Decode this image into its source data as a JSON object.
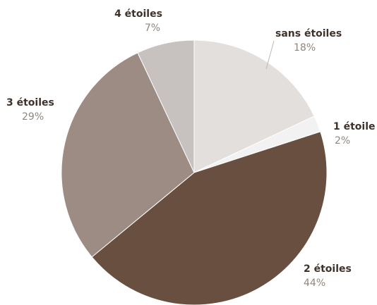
{
  "chart_data": {
    "type": "pie",
    "title": "",
    "slices": [
      {
        "label": "sans étoiles",
        "value": 18,
        "value_text": "18%",
        "color": "#e2dfdd"
      },
      {
        "label": "1 étoile",
        "value": 2,
        "value_text": "2%",
        "color": "#f2f2f2"
      },
      {
        "label": "2 étoiles",
        "value": 44,
        "value_text": "44%",
        "color": "#684f40"
      },
      {
        "label": "3 étoiles",
        "value": 29,
        "value_text": "29%",
        "color": "#9c8c83"
      },
      {
        "label": "4 étoiles",
        "value": 7,
        "value_text": "7%",
        "color": "#c7c1c0"
      }
    ],
    "start": "12 o'clock",
    "direction": "clockwise"
  }
}
